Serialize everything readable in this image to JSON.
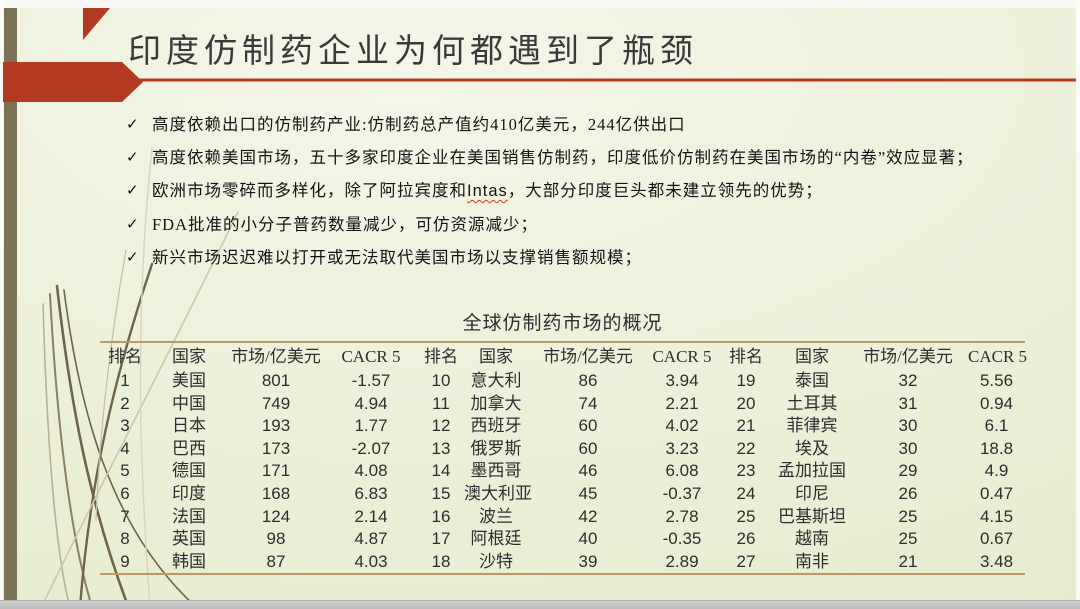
{
  "slide": {
    "title": "印度仿制药企业为何都遇到了瓶颈",
    "bullet_marker": "✓",
    "bullets": [
      {
        "text": "高度依赖出口的仿制药产业:仿制药总产值约410亿美元，244亿供出口"
      },
      {
        "text": "高度依赖美国市场，五十多家印度企业在美国销售仿制药，印度低价仿制药在美国市场的“内卷”效应显著；"
      },
      {
        "pre": "欧洲市场零碎而多样化，除了阿拉宾度和",
        "word": "Intas",
        "post": "，大部分印度巨头都未建立领先的优势；"
      },
      {
        "text": "FDA批准的小分子普药数量减少，可仿资源减少；"
      },
      {
        "text": "新兴市场迟迟难以打开或无法取代美国市场以支撑销售额规模；"
      }
    ],
    "table": {
      "title": "全球仿制药市场的概况",
      "column_headers": [
        "排名",
        "国家",
        "市场/亿美元",
        "CACR 5"
      ],
      "blocks": [
        {
          "rows": [
            [
              "1",
              "美国",
              "801",
              "-1.57"
            ],
            [
              "2",
              "中国",
              "749",
              "4.94"
            ],
            [
              "3",
              "日本",
              "193",
              "1.77"
            ],
            [
              "4",
              "巴西",
              "173",
              "-2.07"
            ],
            [
              "5",
              "德国",
              "171",
              "4.08"
            ],
            [
              "6",
              "印度",
              "168",
              "6.83"
            ],
            [
              "7",
              "法国",
              "124",
              "2.14"
            ],
            [
              "8",
              "英国",
              "98",
              "4.87"
            ],
            [
              "9",
              "韩国",
              "87",
              "4.03"
            ]
          ]
        },
        {
          "rows": [
            [
              "10",
              "意大利",
              "86",
              "3.94"
            ],
            [
              "11",
              "加拿大",
              "74",
              "2.21"
            ],
            [
              "12",
              "西班牙",
              "60",
              "4.02"
            ],
            [
              "13",
              "俄罗斯",
              "60",
              "3.23"
            ],
            [
              "14",
              "墨西哥",
              "46",
              "6.08"
            ],
            [
              "15",
              "澳大利亚",
              "45",
              "-0.37"
            ],
            [
              "16",
              "波兰",
              "42",
              "2.78"
            ],
            [
              "17",
              "阿根廷",
              "40",
              "-0.35"
            ],
            [
              "18",
              "沙特",
              "39",
              "2.89"
            ]
          ]
        },
        {
          "rows": [
            [
              "19",
              "泰国",
              "32",
              "5.56"
            ],
            [
              "20",
              "土耳其",
              "31",
              "0.94"
            ],
            [
              "21",
              "菲律宾",
              "30",
              "6.1"
            ],
            [
              "22",
              "埃及",
              "30",
              "18.8"
            ],
            [
              "23",
              "孟加拉国",
              "29",
              "4.9"
            ],
            [
              "24",
              "印尼",
              "26",
              "0.47"
            ],
            [
              "25",
              "巴基斯坦",
              "25",
              "4.15"
            ],
            [
              "26",
              "越南",
              "25",
              "0.67"
            ],
            [
              "27",
              "南非",
              "21",
              "3.48"
            ]
          ]
        }
      ]
    },
    "colors": {
      "accent_red": "#b23a20",
      "sidebar_olive": "#7d7456",
      "table_rule_tan": "#bd9862",
      "background_cream": "#eef1db"
    }
  }
}
